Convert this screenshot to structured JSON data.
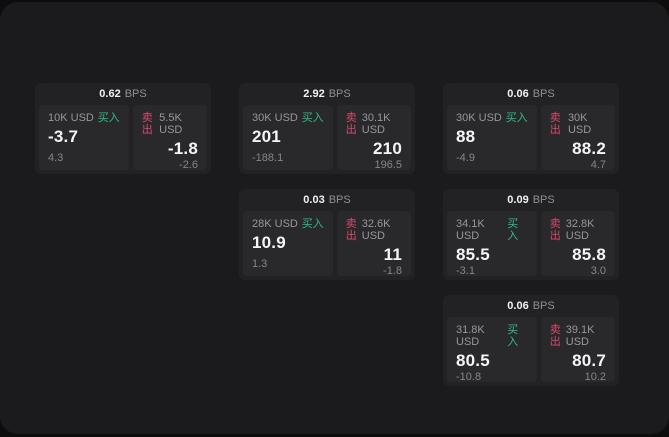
{
  "labels": {
    "bps_unit": "BPS",
    "buy": "买入",
    "sell": "卖出"
  },
  "colors": {
    "buy_green": "#2ebd85",
    "sell_red": "#d9486e",
    "outer_bg": "#0d0d0e",
    "window_bg": "#1b1b1d",
    "card_bg": "#222224",
    "panel_bg": "#29292c"
  },
  "cards": [
    {
      "bps": "0.62",
      "buy": {
        "amount": "10K USD",
        "price": "-3.7",
        "sub": "4.3"
      },
      "sell": {
        "amount": "5.5K USD",
        "price": "-1.8",
        "sub": "-2.6"
      }
    },
    {
      "bps": "2.92",
      "buy": {
        "amount": "30K USD",
        "price": "201",
        "sub": "-188.1"
      },
      "sell": {
        "amount": "30.1K USD",
        "price": "210",
        "sub": "196.5"
      }
    },
    {
      "bps": "0.06",
      "buy": {
        "amount": "30K USD",
        "price": "88",
        "sub": "-4.9"
      },
      "sell": {
        "amount": "30K USD",
        "price": "88.2",
        "sub": "4.7"
      }
    },
    {
      "bps": "0.03",
      "buy": {
        "amount": "28K USD",
        "price": "10.9",
        "sub": "1.3"
      },
      "sell": {
        "amount": "32.6K USD",
        "price": "11",
        "sub": "-1.8"
      }
    },
    {
      "bps": "0.09",
      "buy": {
        "amount": "34.1K USD",
        "price": "85.5",
        "sub": "-3.1"
      },
      "sell": {
        "amount": "32.8K USD",
        "price": "85.8",
        "sub": "3.0"
      }
    },
    {
      "bps": "0.06",
      "buy": {
        "amount": "31.8K USD",
        "price": "80.5",
        "sub": "-10.8"
      },
      "sell": {
        "amount": "39.1K USD",
        "price": "80.7",
        "sub": "10.2"
      }
    }
  ]
}
